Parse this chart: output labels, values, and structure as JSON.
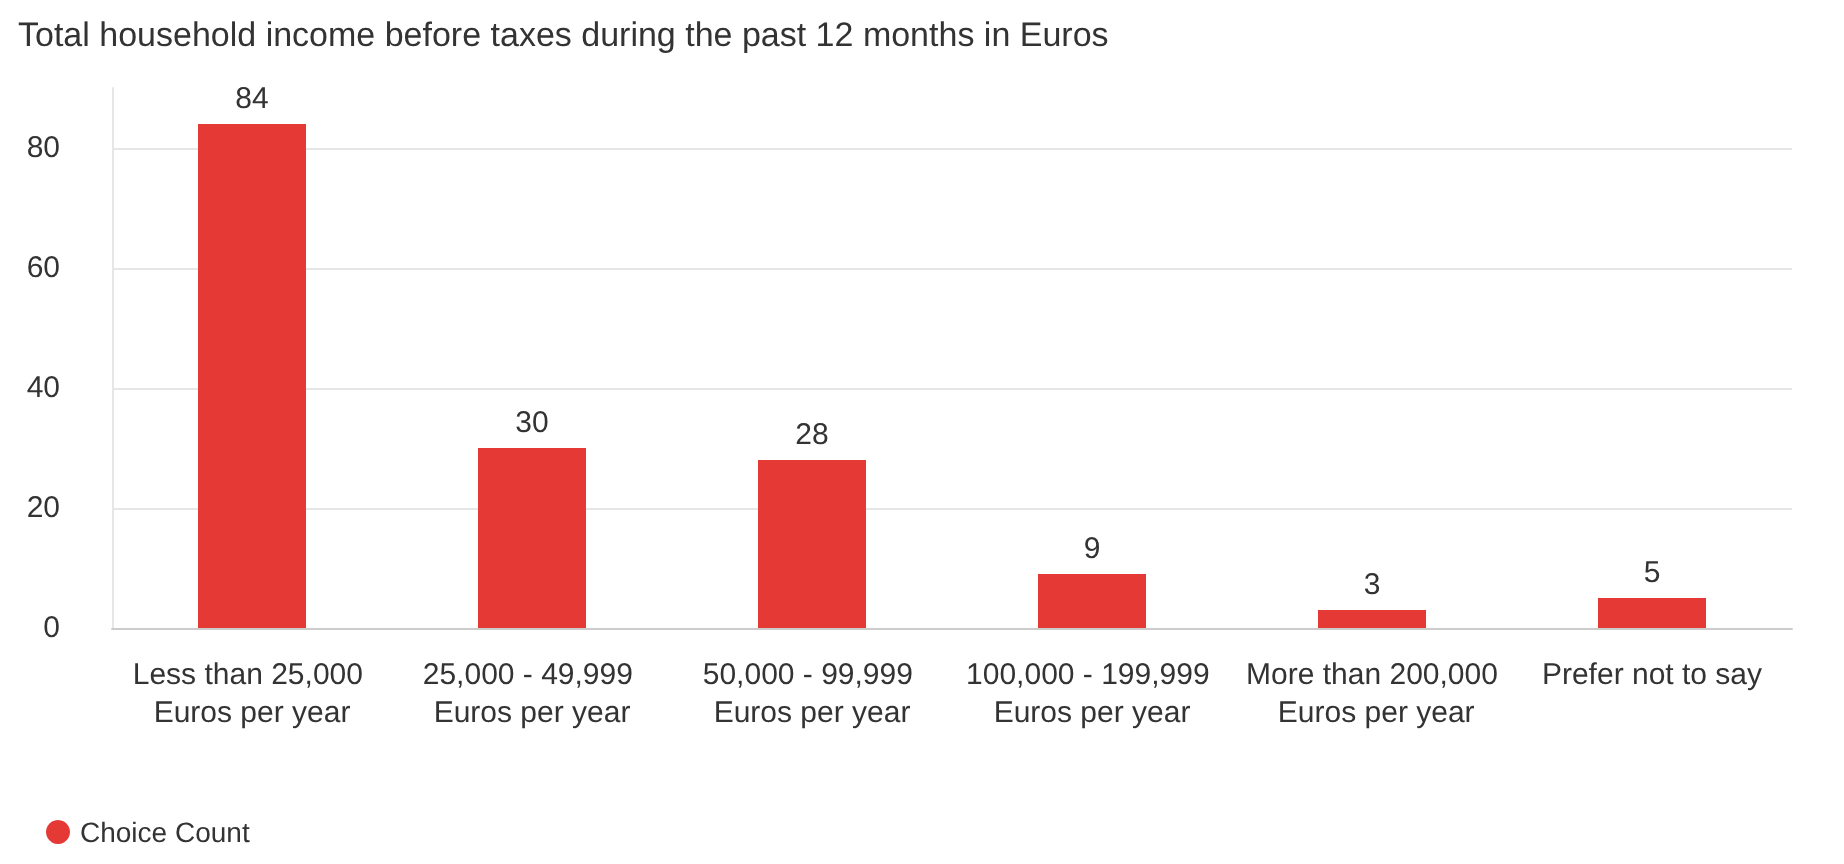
{
  "chart_data": {
    "type": "bar",
    "title": "Total household income before taxes during the past 12 months in Euros",
    "categories": [
      "Less than 25,000 Euros per year",
      "25,000 - 49,999 Euros per year",
      "50,000 - 99,999 Euros per year",
      "100,000 - 199,999 Euros per year",
      "More than 200,000 Euros per year",
      "Prefer not to say"
    ],
    "series": [
      {
        "name": "Choice Count",
        "color": "#e53935",
        "values": [
          84,
          30,
          28,
          9,
          3,
          5
        ]
      }
    ],
    "ylim": [
      0,
      90
    ],
    "yticks": [
      0,
      20,
      40,
      60,
      80
    ],
    "grid": "y",
    "data_labels": true,
    "legend": "bottom left",
    "marker": "circle"
  }
}
